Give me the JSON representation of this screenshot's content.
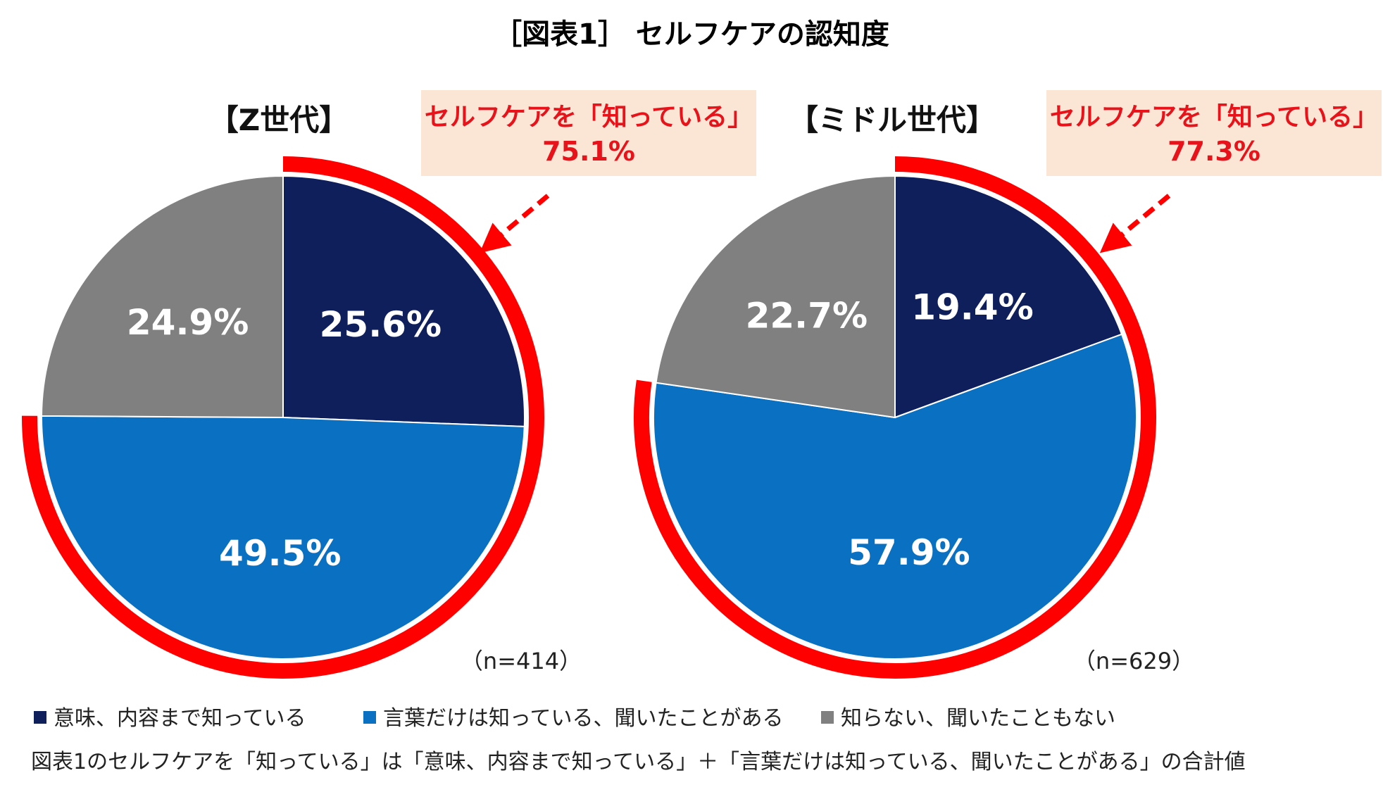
{
  "title": "［図表1］ セルフケアの認知度",
  "colors": {
    "navy": "#0f1f5c",
    "blue": "#0a70c2",
    "gray": "#808080",
    "ring": "#fe0000",
    "callout_bg": "#fbe6d6"
  },
  "legend": [
    {
      "label": "意味、内容まで知っている",
      "color": "#0f1f5c"
    },
    {
      "label": "言葉だけは知っている、聞いたことがある",
      "color": "#0a70c2"
    },
    {
      "label": "知らない、聞いたこともない",
      "color": "#808080"
    }
  ],
  "footnote": "図表1のセルフケアを「知っている」は「意味、内容まで知っている」＋「言葉だけは知っている、聞いたことがある」の合計値",
  "chart_data": [
    {
      "type": "pie",
      "title": "【Z世代】",
      "n_label": "（n=414）",
      "categories": [
        "意味、内容まで知っている",
        "言葉だけは知っている、聞いたことがある",
        "知らない、聞いたこともない"
      ],
      "values": [
        25.6,
        49.5,
        24.9
      ],
      "value_labels": [
        "25.6%",
        "49.5%",
        "24.9%"
      ],
      "callout": {
        "line1": "セルフケアを「知っている」",
        "line2": "75.1%",
        "value": 75.1
      }
    },
    {
      "type": "pie",
      "title": "【ミドル世代】",
      "n_label": "（n=629）",
      "categories": [
        "意味、内容まで知っている",
        "言葉だけは知っている、聞いたことがある",
        "知らない、聞いたこともない"
      ],
      "values": [
        19.4,
        57.9,
        22.7
      ],
      "value_labels": [
        "19.4%",
        "57.9%",
        "22.7%"
      ],
      "callout": {
        "line1": "セルフケアを「知っている」",
        "line2": "77.3%",
        "value": 77.3
      }
    }
  ]
}
